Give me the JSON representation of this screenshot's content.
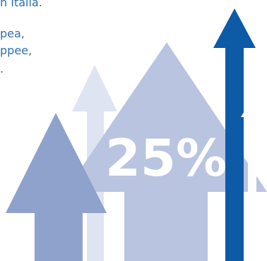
{
  "text_lines": [
    "n Italia.",
    "pea,",
    "ppee,",
    "."
  ],
  "badge": {
    "value": "25%"
  },
  "colors": {
    "text_blue": "#2e6fad",
    "arrow_dark_blue": "#0d5aa7",
    "arrow_mid_blue": "#8fa2cc",
    "arrow_light_blue": "#b8c4e0",
    "arrow_pale_blue": "#dfe4f2",
    "arrow_white": "#ffffff"
  },
  "icons": [
    "up-arrow-icon"
  ]
}
